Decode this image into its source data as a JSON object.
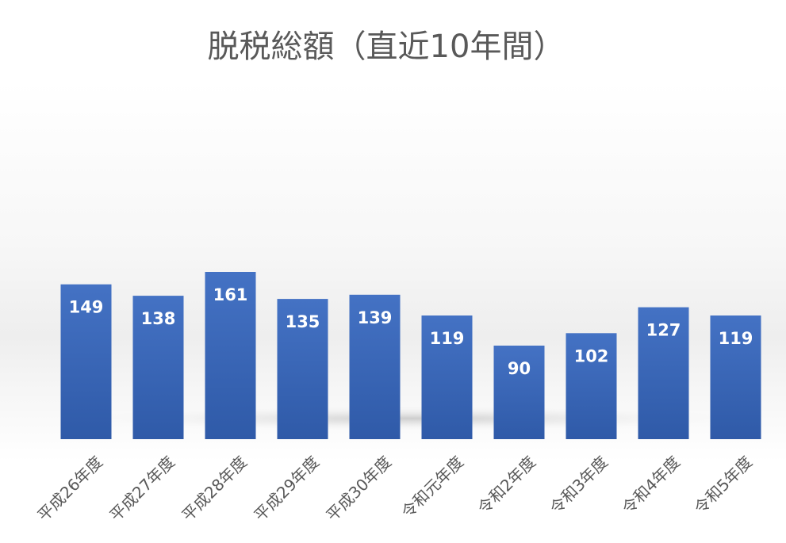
{
  "chart_data": {
    "type": "bar",
    "title": "脱税総額（直近10年間）",
    "xlabel": "",
    "ylabel": "",
    "categories": [
      "平成26年度",
      "平成27年度",
      "平成28年度",
      "平成29年度",
      "平成30年度",
      "令和元年度",
      "令和2年度",
      "令和3年度",
      "令和4年度",
      "令和5年度"
    ],
    "values": [
      149,
      138,
      161,
      135,
      139,
      119,
      90,
      102,
      127,
      119
    ],
    "ylim": [
      0,
      500
    ],
    "grid": false,
    "legend": "none",
    "data_labels": "inside-end",
    "colors": {
      "bar_top": "#4472C4",
      "bar_bottom": "#2F5AA8",
      "title": "#595959",
      "tick": "#595959",
      "label": "#FFFFFF"
    }
  }
}
